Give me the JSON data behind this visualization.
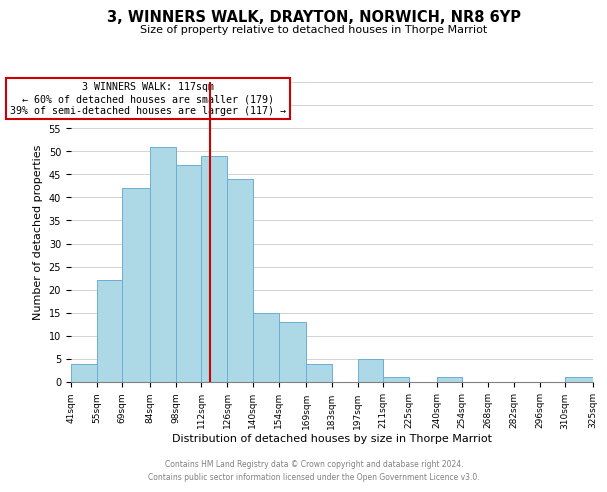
{
  "title": "3, WINNERS WALK, DRAYTON, NORWICH, NR8 6YP",
  "subtitle": "Size of property relative to detached houses in Thorpe Marriot",
  "xlabel": "Distribution of detached houses by size in Thorpe Marriot",
  "ylabel": "Number of detached properties",
  "bin_edges": [
    41,
    55,
    69,
    84,
    98,
    112,
    126,
    140,
    154,
    169,
    183,
    197,
    211,
    225,
    240,
    254,
    268,
    282,
    296,
    310,
    325
  ],
  "bin_heights": [
    4,
    22,
    42,
    51,
    47,
    49,
    44,
    15,
    13,
    4,
    0,
    5,
    1,
    0,
    1,
    0,
    0,
    0,
    0,
    1
  ],
  "bar_color": "#add8e6",
  "bar_edge_color": "#6baed6",
  "vline_x": 117,
  "vline_color": "#cc0000",
  "ylim": [
    0,
    65
  ],
  "yticks": [
    0,
    5,
    10,
    15,
    20,
    25,
    30,
    35,
    40,
    45,
    50,
    55,
    60,
    65
  ],
  "annotation_text": "3 WINNERS WALK: 117sqm\n← 60% of detached houses are smaller (179)\n39% of semi-detached houses are larger (117) →",
  "annotation_bbox_color": "#ffffff",
  "annotation_bbox_edge": "#cc0000",
  "footer_line1": "Contains HM Land Registry data © Crown copyright and database right 2024.",
  "footer_line2": "Contains public sector information licensed under the Open Government Licence v3.0.",
  "tick_labels": [
    "41sqm",
    "55sqm",
    "69sqm",
    "84sqm",
    "98sqm",
    "112sqm",
    "126sqm",
    "140sqm",
    "154sqm",
    "169sqm",
    "183sqm",
    "197sqm",
    "211sqm",
    "225sqm",
    "240sqm",
    "254sqm",
    "268sqm",
    "282sqm",
    "296sqm",
    "310sqm",
    "325sqm"
  ]
}
